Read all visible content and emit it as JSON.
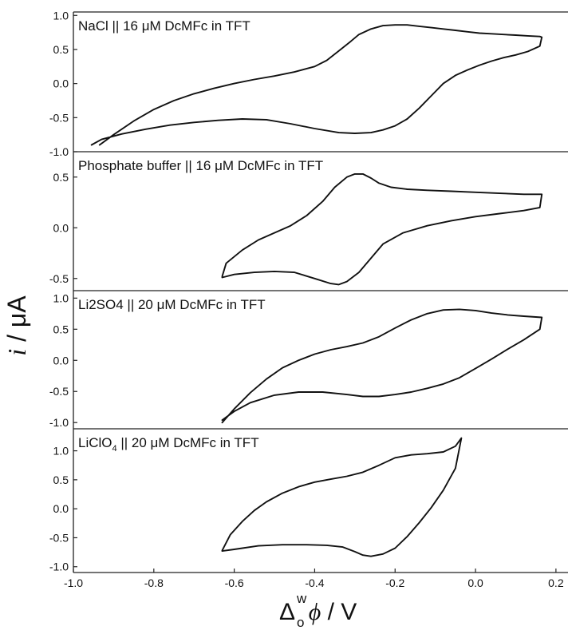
{
  "chart_data": [
    {
      "type": "line",
      "label": "NaCl || 16 μM DcMFc in TFT",
      "ylim": [
        -1.0,
        1.05
      ],
      "yticks": [
        1.0,
        0.5,
        0.0,
        -0.5,
        -1.0
      ],
      "ytick_labels": [
        "1.0",
        "0.5",
        "0.0",
        "-0.5",
        "-1.0"
      ],
      "forward": {
        "x": [
          -0.935,
          -0.9,
          -0.85,
          -0.8,
          -0.75,
          -0.7,
          -0.65,
          -0.6,
          -0.55,
          -0.5,
          -0.45,
          -0.4,
          -0.37,
          -0.34,
          -0.31,
          -0.29,
          -0.26,
          -0.23,
          -0.2,
          -0.17,
          -0.14,
          -0.11,
          -0.08,
          -0.05,
          -0.02,
          0.01,
          0.04,
          0.07,
          0.1,
          0.13,
          0.16,
          0.165
        ],
        "y": [
          -0.9,
          -0.75,
          -0.55,
          -0.38,
          -0.25,
          -0.15,
          -0.07,
          0.0,
          0.06,
          0.11,
          0.17,
          0.25,
          0.34,
          0.48,
          0.62,
          0.72,
          0.8,
          0.85,
          0.86,
          0.86,
          0.84,
          0.82,
          0.8,
          0.78,
          0.76,
          0.74,
          0.73,
          0.72,
          0.71,
          0.7,
          0.69,
          0.68
        ]
      },
      "reverse": {
        "x": [
          0.165,
          0.16,
          0.13,
          0.1,
          0.07,
          0.04,
          0.01,
          -0.02,
          -0.05,
          -0.08,
          -0.11,
          -0.14,
          -0.17,
          -0.2,
          -0.23,
          -0.26,
          -0.3,
          -0.34,
          -0.4,
          -0.46,
          -0.52,
          -0.58,
          -0.64,
          -0.7,
          -0.76,
          -0.82,
          -0.88,
          -0.93,
          -0.955
        ],
        "y": [
          0.68,
          0.55,
          0.47,
          0.42,
          0.38,
          0.33,
          0.27,
          0.2,
          0.12,
          0.0,
          -0.18,
          -0.36,
          -0.52,
          -0.62,
          -0.68,
          -0.72,
          -0.73,
          -0.72,
          -0.66,
          -0.59,
          -0.53,
          -0.52,
          -0.54,
          -0.57,
          -0.61,
          -0.67,
          -0.74,
          -0.82,
          -0.9
        ]
      }
    },
    {
      "type": "line",
      "label": "Phosphate buffer || 16 μM DcMFc in TFT",
      "ylim": [
        -0.62,
        0.75
      ],
      "yticks": [
        0.5,
        0.0,
        -0.5
      ],
      "ytick_labels": [
        "0.5",
        "0.0",
        "-0.5"
      ],
      "forward": {
        "x": [
          -0.63,
          -0.62,
          -0.58,
          -0.54,
          -0.5,
          -0.46,
          -0.42,
          -0.38,
          -0.35,
          -0.32,
          -0.3,
          -0.28,
          -0.26,
          -0.24,
          -0.21,
          -0.17,
          -0.12,
          -0.06,
          0.0,
          0.06,
          0.12,
          0.165
        ],
        "y": [
          -0.48,
          -0.35,
          -0.22,
          -0.12,
          -0.05,
          0.02,
          0.12,
          0.26,
          0.4,
          0.5,
          0.53,
          0.53,
          0.49,
          0.44,
          0.4,
          0.38,
          0.37,
          0.36,
          0.35,
          0.34,
          0.33,
          0.33
        ]
      },
      "reverse": {
        "x": [
          0.165,
          0.16,
          0.12,
          0.06,
          0.0,
          -0.06,
          -0.12,
          -0.18,
          -0.23,
          -0.26,
          -0.29,
          -0.32,
          -0.34,
          -0.36,
          -0.4,
          -0.45,
          -0.5,
          -0.55,
          -0.6,
          -0.63
        ],
        "y": [
          0.33,
          0.2,
          0.17,
          0.14,
          0.11,
          0.07,
          0.02,
          -0.05,
          -0.16,
          -0.3,
          -0.44,
          -0.53,
          -0.56,
          -0.55,
          -0.5,
          -0.44,
          -0.43,
          -0.44,
          -0.46,
          -0.49
        ]
      }
    },
    {
      "type": "line",
      "label": "Li2SO4 || 20 μM DcMFc in TFT",
      "ylim": [
        -1.1,
        1.12
      ],
      "yticks": [
        1.0,
        0.5,
        0.0,
        -0.5,
        -1.0
      ],
      "ytick_labels": [
        "1.0",
        "0.5",
        "0.0",
        "-0.5",
        "-1.0"
      ],
      "forward": {
        "x": [
          -0.63,
          -0.6,
          -0.56,
          -0.52,
          -0.48,
          -0.44,
          -0.4,
          -0.36,
          -0.32,
          -0.28,
          -0.24,
          -0.2,
          -0.16,
          -0.12,
          -0.08,
          -0.04,
          0.0,
          0.04,
          0.08,
          0.12,
          0.165
        ],
        "y": [
          -1.0,
          -0.78,
          -0.52,
          -0.3,
          -0.12,
          0.0,
          0.1,
          0.17,
          0.22,
          0.28,
          0.38,
          0.52,
          0.65,
          0.75,
          0.81,
          0.82,
          0.8,
          0.76,
          0.73,
          0.71,
          0.69
        ]
      },
      "reverse": {
        "x": [
          0.165,
          0.16,
          0.12,
          0.08,
          0.04,
          0.0,
          -0.04,
          -0.08,
          -0.12,
          -0.16,
          -0.2,
          -0.24,
          -0.28,
          -0.32,
          -0.38,
          -0.44,
          -0.5,
          -0.56,
          -0.6,
          -0.63
        ],
        "y": [
          0.69,
          0.5,
          0.33,
          0.18,
          0.02,
          -0.13,
          -0.28,
          -0.38,
          -0.45,
          -0.51,
          -0.55,
          -0.58,
          -0.58,
          -0.55,
          -0.51,
          -0.51,
          -0.56,
          -0.68,
          -0.82,
          -0.96
        ]
      }
    },
    {
      "type": "line",
      "label": "LiClO4 || 20 μM DcMFc in TFT",
      "ylim": [
        -1.1,
        1.38
      ],
      "yticks": [
        1.0,
        0.5,
        0.0,
        -0.5,
        -1.0
      ],
      "ytick_labels": [
        "1.0",
        "0.5",
        "0.0",
        "-0.5",
        "-1.0"
      ],
      "forward": {
        "x": [
          -0.63,
          -0.61,
          -0.58,
          -0.55,
          -0.52,
          -0.48,
          -0.44,
          -0.4,
          -0.36,
          -0.32,
          -0.28,
          -0.24,
          -0.2,
          -0.16,
          -0.12,
          -0.08,
          -0.05,
          -0.035
        ],
        "y": [
          -0.72,
          -0.45,
          -0.22,
          -0.03,
          0.12,
          0.27,
          0.38,
          0.46,
          0.51,
          0.56,
          0.63,
          0.75,
          0.88,
          0.93,
          0.95,
          0.98,
          1.08,
          1.22
        ]
      },
      "reverse": {
        "x": [
          -0.035,
          -0.05,
          -0.08,
          -0.11,
          -0.14,
          -0.17,
          -0.2,
          -0.23,
          -0.26,
          -0.28,
          -0.3,
          -0.33,
          -0.37,
          -0.42,
          -0.48,
          -0.54,
          -0.6,
          -0.63
        ],
        "y": [
          1.22,
          0.7,
          0.32,
          0.02,
          -0.24,
          -0.48,
          -0.68,
          -0.78,
          -0.82,
          -0.8,
          -0.74,
          -0.66,
          -0.63,
          -0.62,
          -0.62,
          -0.64,
          -0.7,
          -0.73
        ]
      }
    }
  ],
  "x_axis": {
    "xlim": [
      -1.0,
      0.23
    ],
    "ticks": [
      -1.0,
      -0.8,
      -0.6,
      -0.4,
      -0.2,
      0.0,
      0.2
    ],
    "tick_labels": [
      "-1.0",
      "-0.8",
      "-0.6",
      "-0.4",
      "-0.2",
      "0.0",
      "0.2"
    ],
    "label_base": "Δ",
    "label_sup": "w",
    "label_sub": "o",
    "label_var": "ϕ",
    "label_rest": " / V"
  },
  "y_axis": {
    "label_var": "i",
    "label_rest": " / μA"
  },
  "colors": {
    "line": "#111111",
    "axis": "#222222"
  }
}
